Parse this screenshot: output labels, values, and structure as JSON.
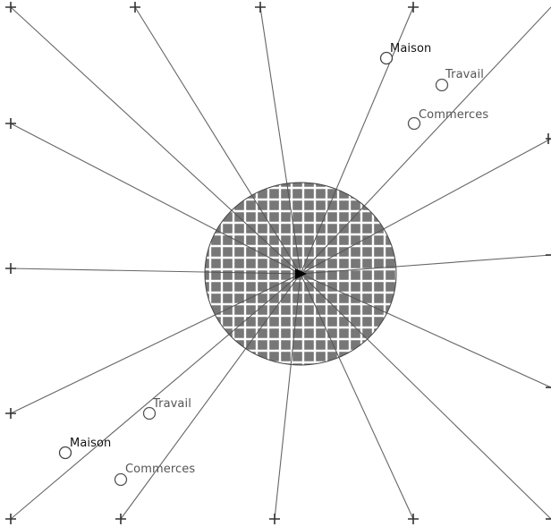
{
  "scene": {
    "center_glyph": "play-arrow-icon",
    "disc_fill": "#777777",
    "grid_line_color": "#ffffff",
    "ray_color": "#666666",
    "marker_stroke": "#555555"
  },
  "clusters": [
    {
      "id": "top-right",
      "locations": [
        {
          "id": "maison",
          "label": "Maison",
          "tone": "dark"
        },
        {
          "id": "travail",
          "label": "Travail",
          "tone": "gray"
        },
        {
          "id": "commerces",
          "label": "Commerces",
          "tone": "gray"
        }
      ]
    },
    {
      "id": "bottom-left",
      "locations": [
        {
          "id": "travail",
          "label": "Travail",
          "tone": "gray"
        },
        {
          "id": "maison",
          "label": "Maison",
          "tone": "dark"
        },
        {
          "id": "commerces",
          "label": "Commerces",
          "tone": "gray"
        }
      ]
    }
  ]
}
